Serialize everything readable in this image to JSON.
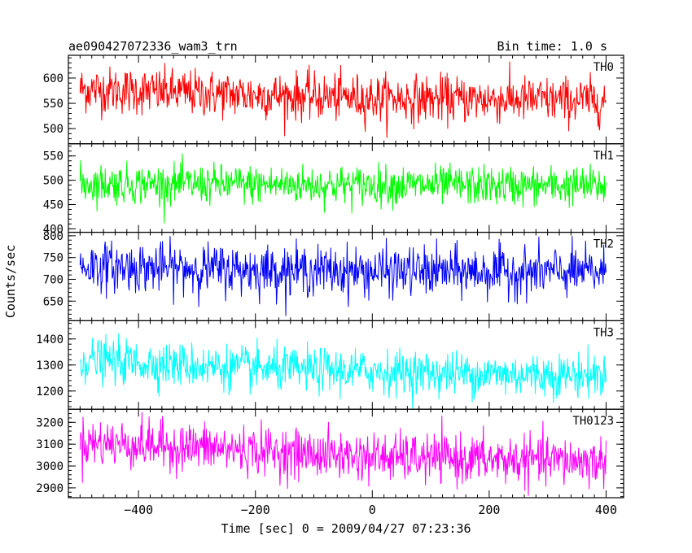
{
  "header": {
    "title": "ae090427072336_wam3_trn",
    "bin_time": "Bin time: 1.0 s"
  },
  "chart_data": {
    "type": "line",
    "title": "ae090427072336_wam3_trn",
    "subtitle": "Bin time: 1.0 s",
    "xlabel": "Time [sec] 0 = 2009/04/27 07:23:36",
    "ylabel": "Counts/sec",
    "xlim": [
      -520,
      430
    ],
    "x_range": [
      -500,
      400
    ],
    "x_ticks": [
      -400,
      -200,
      0,
      200,
      400
    ],
    "x_tick_labels": [
      "−400",
      "−200",
      "0",
      "200",
      "400"
    ],
    "x_step": 1,
    "series": [
      {
        "name": "TH0",
        "color": "#ff0000",
        "ylim": [
          470,
          645
        ],
        "y_ticks": [
          500,
          550,
          600
        ],
        "trend": [
          [
            -500,
            578
          ],
          [
            -300,
            570
          ],
          [
            0,
            560
          ],
          [
            200,
            558
          ],
          [
            400,
            555
          ]
        ],
        "noise": 23
      },
      {
        "name": "TH1",
        "color": "#00ff00",
        "ylim": [
          393,
          575
        ],
        "y_ticks": [
          400,
          450,
          500,
          550
        ],
        "trend": [
          [
            -500,
            493
          ],
          [
            0,
            490
          ],
          [
            400,
            488
          ]
        ],
        "noise": 20
      },
      {
        "name": "TH2",
        "color": "#0000ff",
        "ylim": [
          605,
          808
        ],
        "y_ticks": [
          650,
          700,
          750,
          800
        ],
        "trend": [
          [
            -500,
            730
          ],
          [
            -200,
            722
          ],
          [
            0,
            718
          ],
          [
            400,
            716
          ]
        ],
        "noise": 28
      },
      {
        "name": "TH3",
        "color": "#00ffff",
        "ylim": [
          1130,
          1470
        ],
        "y_ticks": [
          1200,
          1300,
          1400
        ],
        "trend": [
          [
            -500,
            1320
          ],
          [
            -200,
            1285
          ],
          [
            0,
            1275
          ],
          [
            200,
            1265
          ],
          [
            400,
            1260
          ]
        ],
        "noise": 42
      },
      {
        "name": "TH0123",
        "color": "#ff00ff",
        "ylim": [
          2855,
          3260
        ],
        "y_ticks": [
          2900,
          3000,
          3100,
          3200
        ],
        "trend": [
          [
            -500,
            3110
          ],
          [
            -300,
            3085
          ],
          [
            0,
            3040
          ],
          [
            200,
            3030
          ],
          [
            400,
            3020
          ]
        ],
        "noise": 55
      }
    ]
  }
}
